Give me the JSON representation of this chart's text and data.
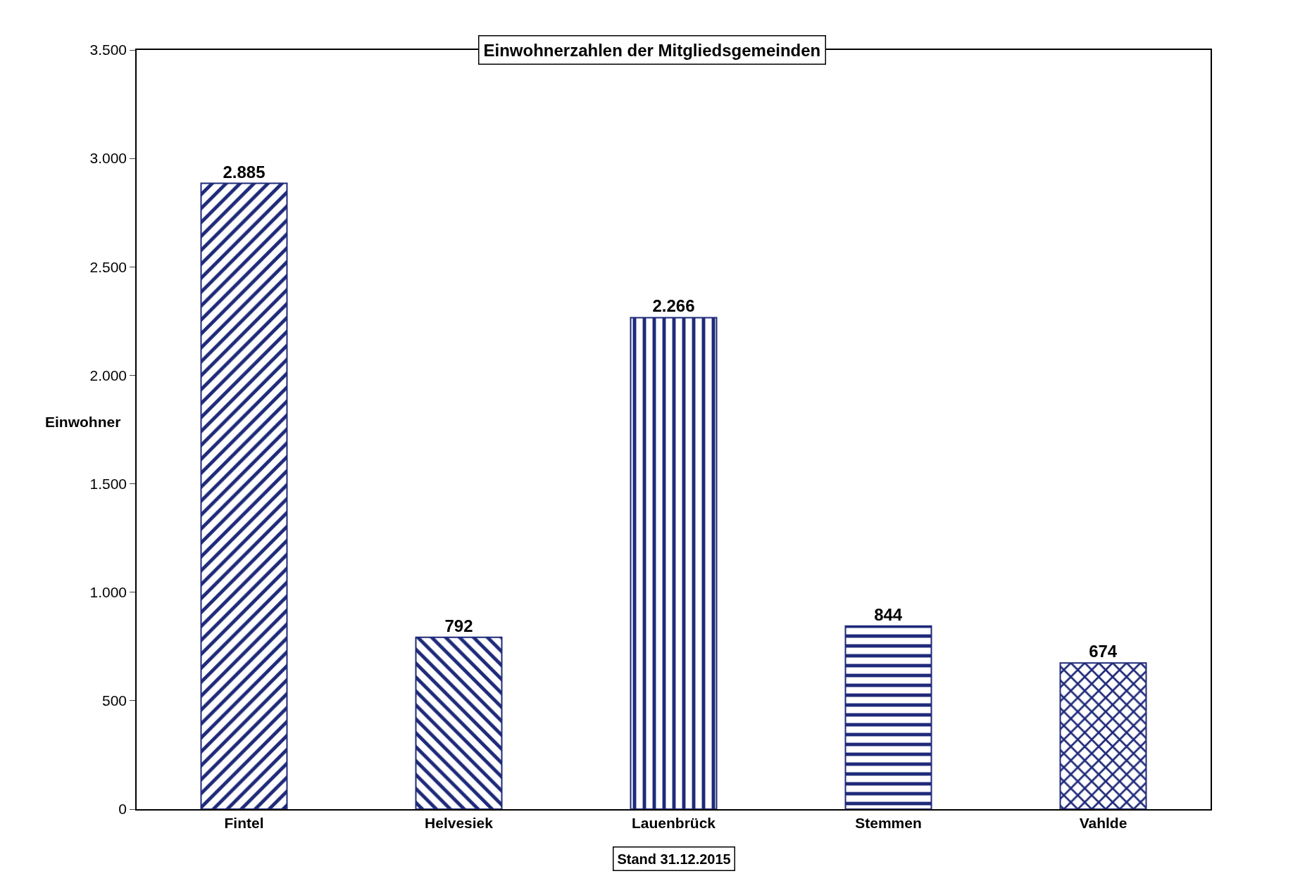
{
  "chart_data": {
    "type": "bar",
    "title": "Einwohnerzahlen der Mitgliedsgemeinden",
    "ylabel": "Einwohner",
    "categories": [
      "Fintel",
      "Helvesiek",
      "Lauenbrück",
      "Stemmen",
      "Vahlde"
    ],
    "values": [
      2885,
      792,
      2266,
      844,
      674
    ],
    "value_labels": [
      "2.885",
      "792",
      "2.266",
      "844",
      "674"
    ],
    "colors": [
      "#1f2a7a",
      "#1f2a7a",
      "#1f2a7a",
      "#1f2a7a",
      "#1f2a7a"
    ],
    "ylim": [
      0,
      3500
    ],
    "yticks": [
      0,
      {
        "value": 500,
        "label": "500"
      },
      {
        "value": 1000,
        "label": "1.000"
      },
      {
        "value": 1500,
        "label": "1.500"
      },
      {
        "value": 2000,
        "label": "2.000"
      },
      {
        "value": 2500,
        "label": "2.500"
      },
      {
        "value": 3000,
        "label": "3.000"
      },
      {
        "value": 3500,
        "label": "3.500"
      }
    ],
    "grid": false,
    "annotations": [
      "Stand 31.12.2015"
    ]
  }
}
